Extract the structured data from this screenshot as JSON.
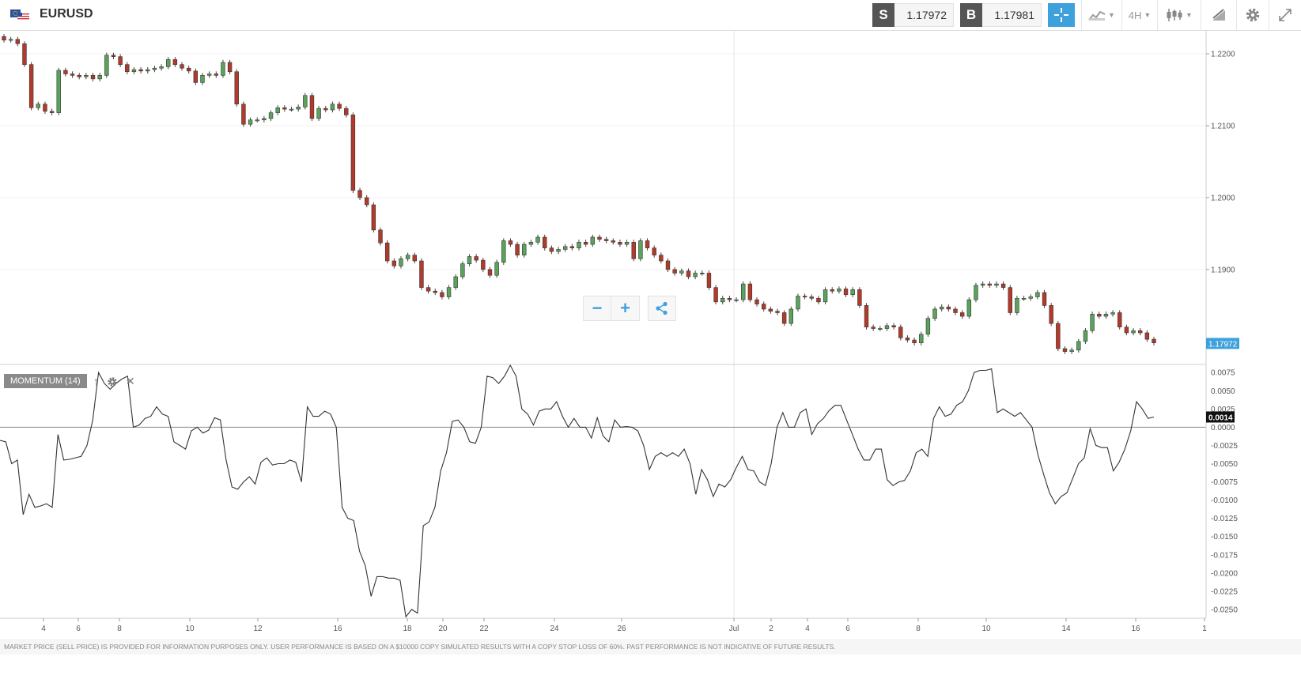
{
  "header": {
    "symbol": "EURUSD",
    "sell_label": "S",
    "sell_price": "1.17972",
    "buy_label": "B",
    "buy_price": "1.17981",
    "timeframe": "4H",
    "icons": [
      "eu-us-flag-icon",
      "crosshair-icon",
      "line-chart-icon",
      "candlestick-icon",
      "draw-icon",
      "gear-icon",
      "fullscreen-icon"
    ]
  },
  "indicator": {
    "label": "MOMENTUM (14)",
    "current_value": "0.0014"
  },
  "price_axis": {
    "ticks": [
      "1.2200",
      "1.2100",
      "1.2000",
      "1.1900"
    ],
    "current_price": "1.17972"
  },
  "momentum_axis": {
    "ticks": [
      "0.0075",
      "0.0050",
      "0.0025",
      "0.0000",
      "-0.0025",
      "-0.0050",
      "-0.0075",
      "-0.0100",
      "-0.0125",
      "-0.0150",
      "-0.0175",
      "-0.0200",
      "-0.0225",
      "-0.0250"
    ]
  },
  "time_axis": {
    "ticks": [
      "4",
      "6",
      "8",
      "10",
      "12",
      "16",
      "18",
      "20",
      "22",
      "24",
      "26",
      "Jul",
      "2",
      "4",
      "6",
      "8",
      "10",
      "14",
      "16",
      "1"
    ]
  },
  "footer": {
    "disclaimer": "MARKET PRICE (SELL PRICE) IS PROVIDED FOR INFORMATION PURPOSES ONLY. USER PERFORMANCE IS BASED ON A $10000 COPY SIMULATED RESULTS WITH A COPY STOP LOSS OF 60%. PAST PERFORMANCE IS NOT INDICATIVE OF FUTURE RESULTS."
  },
  "colors": {
    "bull": "#5aa35a",
    "bear": "#b33a2a",
    "accent": "#3fa1dc",
    "momentum_line": "#333333"
  },
  "chart_data": [
    {
      "type": "candlestick",
      "title": "",
      "ylim": [
        1.1768,
        1.2233
      ],
      "closes": [
        1.2219,
        1.222,
        1.2214,
        1.2185,
        1.2125,
        1.213,
        1.212,
        1.2118,
        1.2177,
        1.2172,
        1.217,
        1.2168,
        1.217,
        1.2165,
        1.217,
        1.2198,
        1.2196,
        1.2185,
        1.2175,
        1.2178,
        1.2176,
        1.2178,
        1.218,
        1.2182,
        1.2192,
        1.2185,
        1.218,
        1.2176,
        1.216,
        1.217,
        1.2172,
        1.217,
        1.2188,
        1.2175,
        1.213,
        1.2102,
        1.2108,
        1.2108,
        1.211,
        1.2118,
        1.2125,
        1.2123,
        1.2123,
        1.2126,
        1.2142,
        1.211,
        1.2124,
        1.2122,
        1.213,
        1.2124,
        1.2115,
        1.201,
        1.2,
        1.199,
        1.1955,
        1.1937,
        1.1912,
        1.1905,
        1.1915,
        1.192,
        1.1912,
        1.1875,
        1.187,
        1.1868,
        1.1862,
        1.1875,
        1.189,
        1.1908,
        1.1918,
        1.1913,
        1.19,
        1.1892,
        1.191,
        1.194,
        1.1935,
        1.192,
        1.1935,
        1.1938,
        1.1945,
        1.193,
        1.1925,
        1.1928,
        1.1932,
        1.193,
        1.1938,
        1.1935,
        1.1945,
        1.1942,
        1.194,
        1.1938,
        1.1935,
        1.1938,
        1.1915,
        1.194,
        1.193,
        1.192,
        1.1912,
        1.19,
        1.1895,
        1.1898,
        1.189,
        1.1895,
        1.1895,
        1.1875,
        1.1855,
        1.186,
        1.1858,
        1.1858,
        1.188,
        1.1858,
        1.1852,
        1.1845,
        1.1842,
        1.184,
        1.1825,
        1.1845,
        1.1863,
        1.1862,
        1.186,
        1.1855,
        1.1872,
        1.187,
        1.1873,
        1.1865,
        1.1872,
        1.185,
        1.182,
        1.1818,
        1.1818,
        1.1822,
        1.182,
        1.1805,
        1.1802,
        1.1798,
        1.181,
        1.1832,
        1.1845,
        1.1848,
        1.1845,
        1.184,
        1.1835,
        1.1858,
        1.1878,
        1.188,
        1.1878,
        1.188,
        1.1875,
        1.184,
        1.186,
        1.186,
        1.1862,
        1.1868,
        1.185,
        1.1825,
        1.179,
        1.1786,
        1.1788,
        1.18,
        1.1815,
        1.1838,
        1.1835,
        1.1838,
        1.184,
        1.182,
        1.1812,
        1.1815,
        1.1812,
        1.1803,
        1.1798
      ]
    },
    {
      "type": "line",
      "title": "",
      "series_label": "MOMENTUM (14)",
      "ylim": [
        -0.0262,
        0.0085
      ],
      "values": [
        -0.0018,
        -0.002,
        -0.005,
        -0.0045,
        -0.012,
        -0.0092,
        -0.011,
        -0.0108,
        -0.0105,
        -0.011,
        -0.001,
        -0.0045,
        -0.0044,
        -0.0042,
        -0.004,
        -0.0025,
        0.001,
        0.0075,
        0.006,
        0.0052,
        0.006,
        0.0066,
        0.007,
        0.0,
        0.0003,
        0.0012,
        0.0015,
        0.0028,
        0.0018,
        0.0015,
        -0.002,
        -0.0025,
        -0.003,
        -0.0005,
        0.0,
        -0.0008,
        -0.0004,
        0.0013,
        0.001,
        -0.0045,
        -0.0082,
        -0.0085,
        -0.0075,
        -0.0068,
        -0.0078,
        -0.0048,
        -0.0042,
        -0.0052,
        -0.005,
        -0.005,
        -0.0045,
        -0.0048,
        -0.0075,
        0.0028,
        0.0015,
        0.0015,
        0.0022,
        0.0018,
        0.0,
        -0.011,
        -0.0125,
        -0.0128,
        -0.017,
        -0.019,
        -0.0232,
        -0.0205,
        -0.0205,
        -0.0207,
        -0.0207,
        -0.021,
        -0.026,
        -0.025,
        -0.0255,
        -0.0135,
        -0.013,
        -0.011,
        -0.006,
        -0.0035,
        0.0008,
        0.001,
        0.0,
        -0.002,
        -0.0022,
        0.0,
        0.007,
        0.0068,
        0.006,
        0.007,
        0.0085,
        0.007,
        0.0025,
        0.0018,
        0.0003,
        0.0022,
        0.0025,
        0.0025,
        0.0035,
        0.0015,
        0.0,
        0.0012,
        0.0,
        0.0,
        -0.0015,
        0.0013,
        -0.0012,
        -0.002,
        0.001,
        0.0,
        0.0001,
        0.0,
        -0.0005,
        -0.0025,
        -0.0058,
        -0.004,
        -0.0035,
        -0.004,
        -0.0035,
        -0.004,
        -0.003,
        -0.005,
        -0.0092,
        -0.0058,
        -0.0072,
        -0.0095,
        -0.0078,
        -0.0082,
        -0.0072,
        -0.0055,
        -0.004,
        -0.0058,
        -0.006,
        -0.0075,
        -0.008,
        -0.005,
        0.0,
        0.002,
        0.0,
        0.0,
        0.002,
        0.0025,
        -0.001,
        0.0005,
        0.0012,
        0.0023,
        0.003,
        0.003,
        0.001,
        -0.001,
        -0.003,
        -0.0045,
        -0.0045,
        -0.003,
        -0.003,
        -0.0072,
        -0.008,
        -0.0075,
        -0.0073,
        -0.006,
        -0.0035,
        -0.003,
        -0.004,
        0.0012,
        0.0028,
        0.0015,
        0.0018,
        0.003,
        0.0035,
        0.005,
        0.0075,
        0.0078,
        0.0078,
        0.008,
        0.002,
        0.0025,
        0.002,
        0.0015,
        0.002,
        0.001,
        0.0,
        -0.0038,
        -0.0065,
        -0.009,
        -0.0105,
        -0.0095,
        -0.009,
        -0.007,
        -0.005,
        -0.0042,
        -0.0002,
        -0.0025,
        -0.0028,
        -0.0028,
        -0.006,
        -0.0048,
        -0.003,
        -0.0005,
        0.0035,
        0.0025,
        0.0012,
        0.0014
      ]
    }
  ]
}
